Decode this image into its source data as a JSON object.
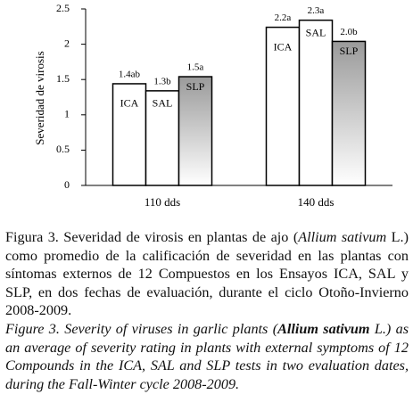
{
  "chart_data": {
    "type": "bar",
    "y_label": "Severidad de virosis",
    "categories": [
      "110 dds",
      "140 dds"
    ],
    "series": [
      {
        "name": "ICA",
        "color": "#ffffff",
        "values": [
          1.44,
          2.24
        ],
        "value_labels": [
          "1.4ab",
          "2.2a"
        ]
      },
      {
        "name": "SAL",
        "color": "#ffffff",
        "values": [
          1.34,
          2.34
        ],
        "value_labels": [
          "1.3b",
          "2.3a"
        ]
      },
      {
        "name": "SLP",
        "color": "#9a9a9a",
        "values": [
          1.54,
          2.04
        ],
        "value_labels": [
          "1.5a",
          "2.0b"
        ]
      }
    ],
    "ylim": [
      0,
      2.5
    ],
    "yticks": [
      0,
      0.5,
      1,
      1.5,
      2,
      2.5
    ],
    "grid": false
  },
  "caption": {
    "es": [
      "Figura 3. Severidad de virosis en plantas de ajo (",
      "Allium sativum",
      " L.) como promedio de la calificación de severidad en las plantas con síntomas externos de 12 Compuestos en los Ensayos ICA, SAL y SLP, en dos fechas de evaluación, durante el ciclo Otoño-Invierno 2008-2009."
    ],
    "en": [
      "Figure 3. Severity of viruses in garlic plants (",
      "Allium sativum",
      " L.) as an average of severity rating in plants with external symptoms of 12 Compounds in the  ICA, SAL and SLP tests in two evaluation dates, during the Fall-Winter cycle 2008-2009."
    ]
  }
}
